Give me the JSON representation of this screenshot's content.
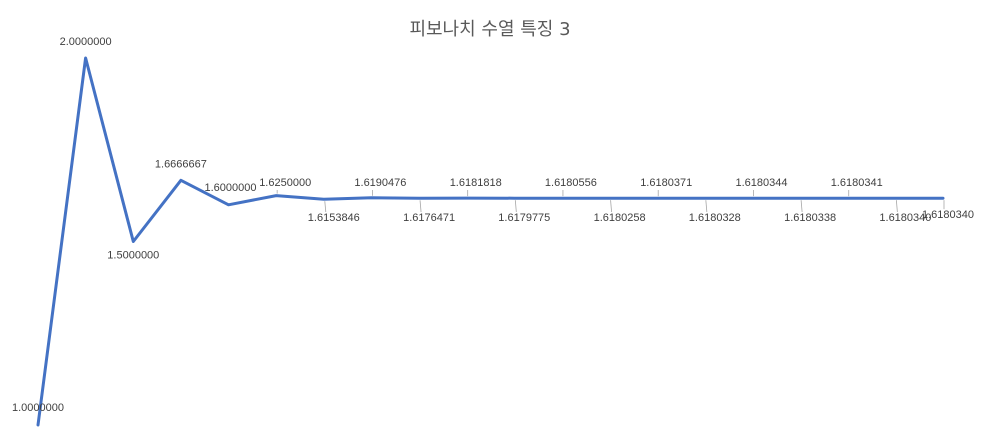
{
  "chart_data": {
    "type": "line",
    "title": "피보나치 수열 특징 3",
    "xlabel": "",
    "ylabel": "",
    "grid": false,
    "legend": "none",
    "ylim": [
      1.0,
      2.0
    ],
    "color": "#4472c4",
    "values": [
      1.0,
      2.0,
      1.5,
      1.6666667,
      1.6,
      1.625,
      1.6153846,
      1.6190476,
      1.6176471,
      1.6181818,
      1.6179775,
      1.6180556,
      1.6180258,
      1.6180371,
      1.6180328,
      1.6180344,
      1.6180338,
      1.6180341,
      1.618034,
      1.618034
    ],
    "labels": [
      "1.0000000",
      "2.0000000",
      "1.5000000",
      "1.6666667",
      "1.6000000",
      "1.6250000",
      "1.6153846",
      "1.6190476",
      "1.6176471",
      "1.6181818",
      "1.6179775",
      "1.6180556",
      "1.6180258",
      "1.6180371",
      "1.6180328",
      "1.6180344",
      "1.6180338",
      "1.6180341",
      "1.6180340",
      "1.6180340"
    ]
  }
}
